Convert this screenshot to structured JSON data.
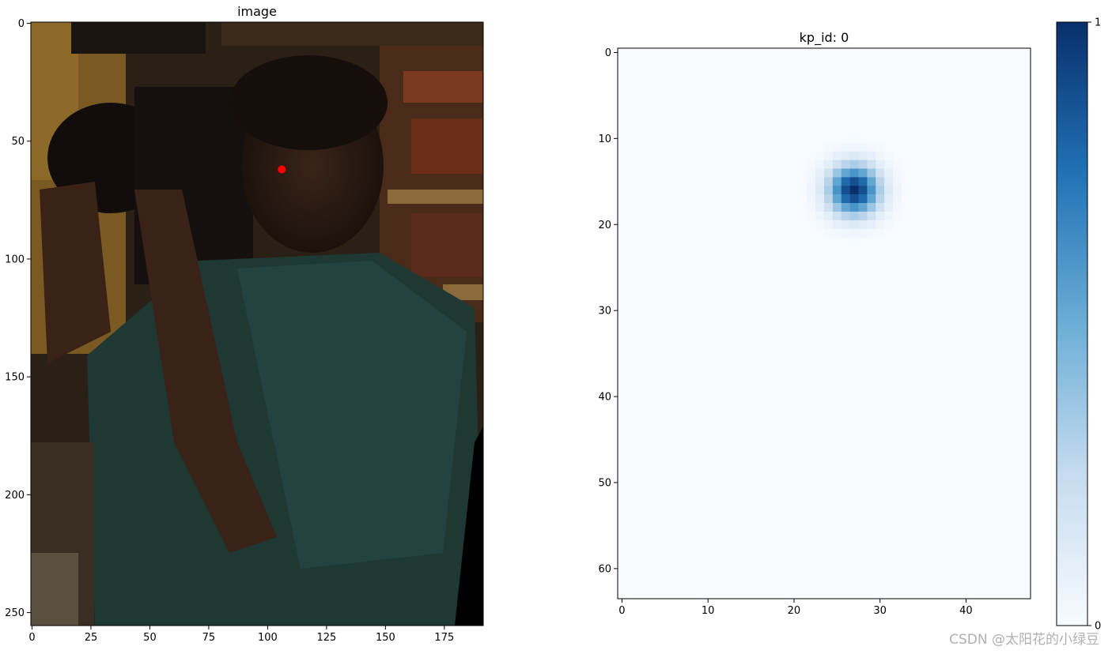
{
  "chart_data": [
    {
      "type": "image",
      "title": "image",
      "xlim": [
        -0.5,
        191.5
      ],
      "ylim": [
        255.5,
        -0.5
      ],
      "xticks": [
        0,
        25,
        50,
        75,
        100,
        125,
        150,
        175
      ],
      "yticks": [
        0,
        50,
        100,
        150,
        200,
        250
      ],
      "keypoint": {
        "x": 106,
        "y": 62,
        "color": "#ff0000"
      },
      "image_description_colors": {
        "background": "#2a2218",
        "shirt": "#1f3a36",
        "wall": "#6b4a1c"
      }
    },
    {
      "type": "heatmap",
      "title": "kp_id: 0",
      "colormap": "Blues",
      "xlim": [
        -0.5,
        47.5
      ],
      "ylim": [
        63.5,
        -0.5
      ],
      "xticks": [
        0,
        10,
        20,
        30,
        40
      ],
      "yticks": [
        0,
        10,
        20,
        30,
        40,
        50,
        60
      ],
      "grid_size": [
        48,
        64
      ],
      "peak": {
        "x": 27,
        "y": 16,
        "value": 1.0
      },
      "sigma": 2,
      "colorbar": {
        "min": 0,
        "max": 1,
        "ticks": [
          "0",
          "1"
        ]
      }
    }
  ],
  "watermark": "CSDN @太阳花的小绿豆"
}
